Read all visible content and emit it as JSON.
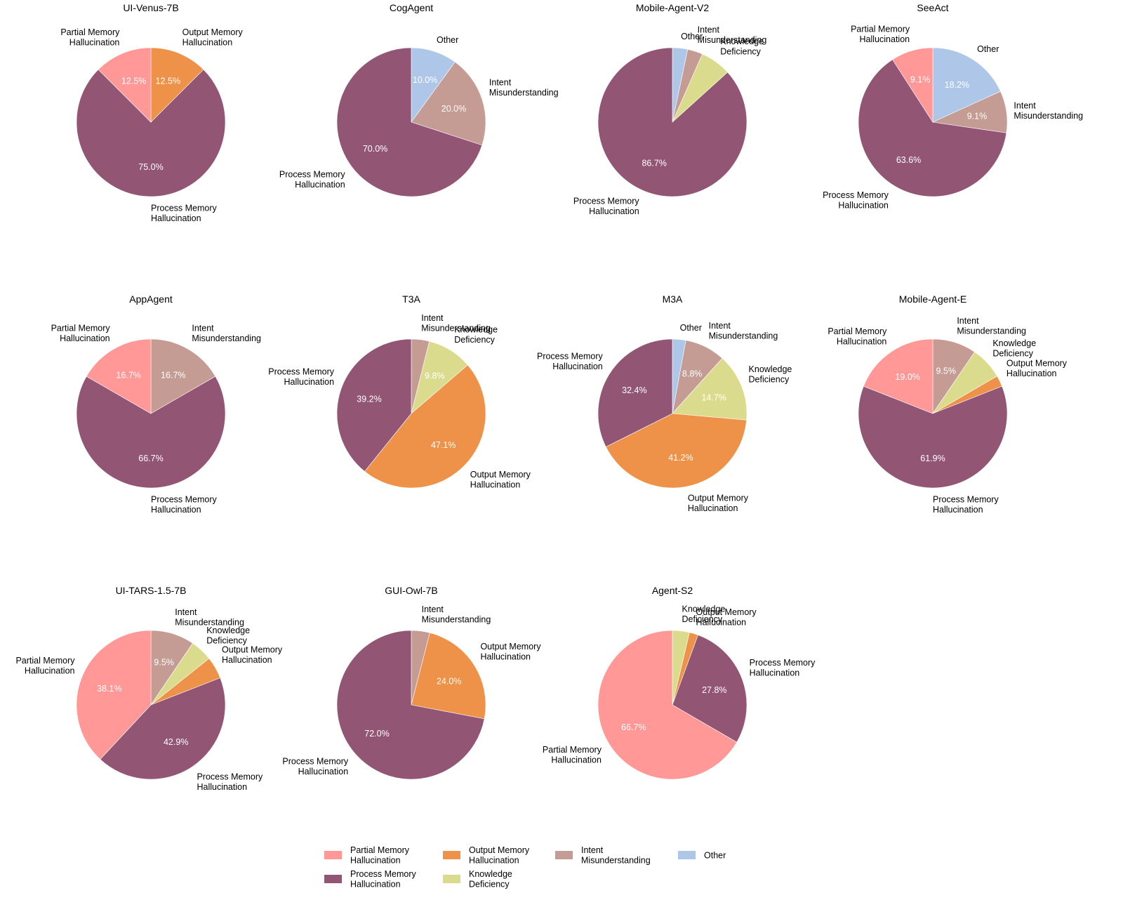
{
  "chart_data": {
    "type": "pie",
    "title": "",
    "start_angle": "top (12 o'clock)",
    "direction": "clockwise",
    "category_order": [
      "Other",
      "Intent Misunderstanding",
      "Knowledge Deficiency",
      "Output Memory Hallucination",
      "Process Memory Hallucination",
      "Partial Memory Hallucination"
    ],
    "colors": {
      "Partial Memory Hallucination": "#FF9896",
      "Process Memory Hallucination": "#935574",
      "Output Memory Hallucination": "#EF9249",
      "Knowledge Deficiency": "#DBDB8D",
      "Intent Misunderstanding": "#C49C94",
      "Other": "#AEC7E8"
    },
    "legend": {
      "placement": "bottom-center",
      "entries": [
        {
          "key": "Partial Memory Hallucination",
          "lines": [
            "Partial Memory",
            "Hallucination"
          ]
        },
        {
          "key": "Process Memory Hallucination",
          "lines": [
            "Process Memory",
            "Hallucination"
          ]
        },
        {
          "key": "Output Memory Hallucination",
          "lines": [
            "Output Memory",
            "Hallucination"
          ]
        },
        {
          "key": "Knowledge Deficiency",
          "lines": [
            "Knowledge",
            "Deficiency"
          ]
        },
        {
          "key": "Intent Misunderstanding",
          "lines": [
            "Intent",
            "Misunderstanding"
          ]
        },
        {
          "key": "Other",
          "lines": [
            "Other"
          ]
        }
      ]
    },
    "label_lines": {
      "Partial Memory Hallucination": [
        "Partial Memory",
        "Hallucination"
      ],
      "Process Memory Hallucination": [
        "Process Memory",
        "Hallucination"
      ],
      "Output Memory Hallucination": [
        "Output Memory",
        "Hallucination"
      ],
      "Knowledge Deficiency": [
        "Knowledge",
        "Deficiency"
      ],
      "Intent Misunderstanding": [
        "Intent",
        "Misunderstanding"
      ],
      "Other": [
        "Other"
      ]
    },
    "pct_threshold": 8,
    "pies": [
      {
        "title": "UI-Venus-7B",
        "slices": [
          {
            "label": "Output Memory Hallucination",
            "value": 12.5
          },
          {
            "label": "Process Memory Hallucination",
            "value": 75.0
          },
          {
            "label": "Partial Memory Hallucination",
            "value": 12.5
          }
        ]
      },
      {
        "title": "CogAgent",
        "slices": [
          {
            "label": "Other",
            "value": 10.0
          },
          {
            "label": "Intent Misunderstanding",
            "value": 20.0
          },
          {
            "label": "Process Memory Hallucination",
            "value": 70.0
          }
        ]
      },
      {
        "title": "Mobile-Agent-V2",
        "slices": [
          {
            "label": "Other",
            "value": 3.3
          },
          {
            "label": "Intent Misunderstanding",
            "value": 3.3
          },
          {
            "label": "Knowledge Deficiency",
            "value": 6.7
          },
          {
            "label": "Process Memory Hallucination",
            "value": 86.7
          }
        ]
      },
      {
        "title": "SeeAct",
        "slices": [
          {
            "label": "Other",
            "value": 18.2
          },
          {
            "label": "Intent Misunderstanding",
            "value": 9.1
          },
          {
            "label": "Process Memory Hallucination",
            "value": 63.6
          },
          {
            "label": "Partial Memory Hallucination",
            "value": 9.1
          }
        ]
      },
      {
        "title": "AppAgent",
        "slices": [
          {
            "label": "Intent Misunderstanding",
            "value": 16.7
          },
          {
            "label": "Process Memory Hallucination",
            "value": 66.7
          },
          {
            "label": "Partial Memory Hallucination",
            "value": 16.7
          }
        ]
      },
      {
        "title": "T3A",
        "slices": [
          {
            "label": "Intent Misunderstanding",
            "value": 3.9
          },
          {
            "label": "Knowledge Deficiency",
            "value": 9.8
          },
          {
            "label": "Output Memory Hallucination",
            "value": 47.1
          },
          {
            "label": "Process Memory Hallucination",
            "value": 39.2
          }
        ]
      },
      {
        "title": "M3A",
        "slices": [
          {
            "label": "Other",
            "value": 2.9
          },
          {
            "label": "Intent Misunderstanding",
            "value": 8.8
          },
          {
            "label": "Knowledge Deficiency",
            "value": 14.7
          },
          {
            "label": "Output Memory Hallucination",
            "value": 41.2
          },
          {
            "label": "Process Memory Hallucination",
            "value": 32.4
          }
        ]
      },
      {
        "title": "Mobile-Agent-E",
        "slices": [
          {
            "label": "Intent Misunderstanding",
            "value": 9.5
          },
          {
            "label": "Knowledge Deficiency",
            "value": 7.1
          },
          {
            "label": "Output Memory Hallucination",
            "value": 2.4
          },
          {
            "label": "Process Memory Hallucination",
            "value": 61.9
          },
          {
            "label": "Partial Memory Hallucination",
            "value": 19.0
          }
        ]
      },
      {
        "title": "UI-TARS-1.5-7B",
        "slices": [
          {
            "label": "Intent Misunderstanding",
            "value": 9.5
          },
          {
            "label": "Knowledge Deficiency",
            "value": 4.8
          },
          {
            "label": "Output Memory Hallucination",
            "value": 4.8
          },
          {
            "label": "Process Memory Hallucination",
            "value": 42.9
          },
          {
            "label": "Partial Memory Hallucination",
            "value": 38.1
          }
        ]
      },
      {
        "title": "GUI-Owl-7B",
        "slices": [
          {
            "label": "Intent Misunderstanding",
            "value": 4.0
          },
          {
            "label": "Output Memory Hallucination",
            "value": 24.0
          },
          {
            "label": "Process Memory Hallucination",
            "value": 72.0
          }
        ]
      },
      {
        "title": "Agent-S2",
        "slices": [
          {
            "label": "Knowledge Deficiency",
            "value": 3.7
          },
          {
            "label": "Output Memory Hallucination",
            "value": 1.9
          },
          {
            "label": "Process Memory Hallucination",
            "value": 27.8
          },
          {
            "label": "Partial Memory Hallucination",
            "value": 66.7
          }
        ]
      }
    ]
  }
}
